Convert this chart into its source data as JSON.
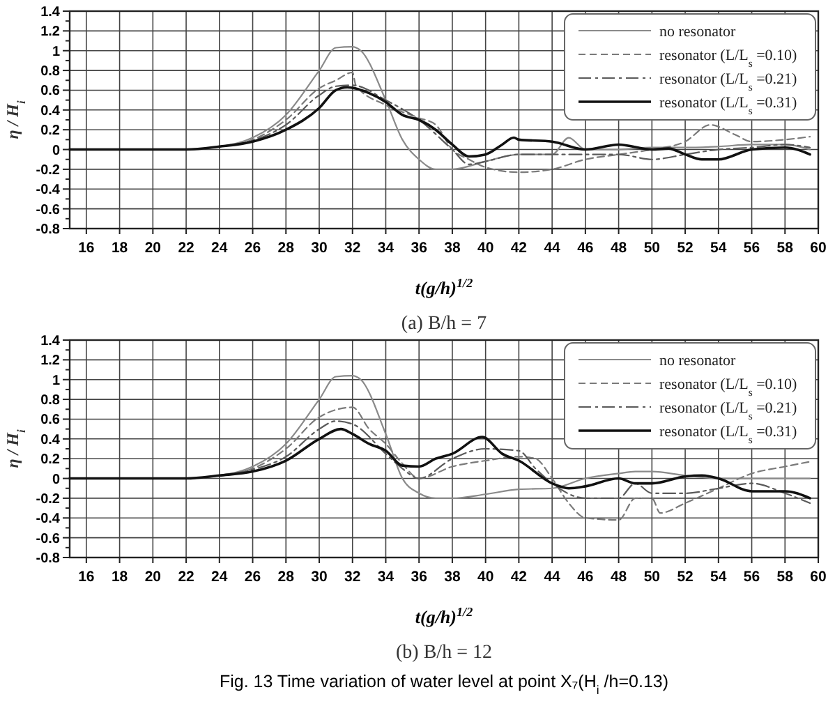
{
  "chart_data": [
    {
      "type": "line",
      "subtitle": "(a)  B/h = 7",
      "xlabel": "t(g/h)$^{1/2}$",
      "ylabel": "η / H$_{i}$",
      "xlim": [
        15,
        60
      ],
      "ylim": [
        -0.8,
        1.4
      ],
      "xticks": [
        16,
        18,
        20,
        22,
        24,
        26,
        28,
        30,
        32,
        34,
        36,
        38,
        40,
        42,
        44,
        46,
        48,
        50,
        52,
        54,
        56,
        58,
        60
      ],
      "yticks": [
        -0.8,
        -0.6,
        -0.4,
        -0.2,
        0,
        0.2,
        0.4,
        0.6,
        0.8,
        1,
        1.2,
        1.4
      ],
      "grid": true,
      "legend": "top right",
      "series": [
        {
          "name": "no resonator",
          "color": "#8a8a8a",
          "line_style": "solid",
          "x": [
            15,
            22,
            24,
            26,
            28,
            30,
            31,
            32,
            32.5,
            34,
            35,
            36,
            37,
            38,
            40,
            42,
            44,
            45,
            46,
            48,
            50,
            52,
            54,
            56,
            58,
            59.5
          ],
          "values": [
            0,
            0,
            0.03,
            0.12,
            0.35,
            0.8,
            1.03,
            1.04,
            1,
            0.5,
            0.1,
            -0.1,
            -0.2,
            -0.2,
            -0.12,
            -0.05,
            -0.05,
            0.12,
            0,
            0,
            0.02,
            0.02,
            0.03,
            0.05,
            0.05,
            0
          ]
        },
        {
          "name": "resonator (L/L$_{s}$=0.10)",
          "color": "#7a7a7a",
          "line_style": "dashed",
          "x": [
            15,
            22,
            24,
            26,
            28,
            30,
            31,
            32,
            32.2,
            34,
            36,
            37,
            38,
            39,
            40,
            42,
            44,
            46,
            48,
            50,
            52,
            53.5,
            55,
            56,
            58,
            59.5
          ],
          "values": [
            0,
            0,
            0.03,
            0.1,
            0.3,
            0.62,
            0.7,
            0.78,
            0.65,
            0.45,
            0.32,
            0.25,
            0,
            -0.1,
            -0.18,
            -0.23,
            -0.2,
            -0.1,
            -0.05,
            0,
            0.08,
            0.25,
            0.15,
            0.08,
            0.1,
            0.13
          ]
        },
        {
          "name": "resonator (L/L$_{s}$=0.21)",
          "color": "#5a5a5a",
          "line_style": "dashdot",
          "x": [
            15,
            22,
            24,
            26,
            28,
            30,
            31,
            32,
            34,
            36,
            38,
            39,
            40,
            42,
            44,
            46,
            48,
            50,
            52,
            54,
            56,
            58,
            59.5
          ],
          "values": [
            0,
            0,
            0.03,
            0.09,
            0.25,
            0.55,
            0.64,
            0.65,
            0.5,
            0.3,
            0,
            -0.15,
            -0.12,
            -0.05,
            -0.05,
            -0.05,
            -0.05,
            -0.1,
            -0.05,
            0,
            0.02,
            0.05,
            0.02
          ]
        },
        {
          "name": "resonator (L/L$_{s}$=0.31)",
          "color": "#111111",
          "line_style": "solid",
          "x": [
            15,
            22,
            24,
            26,
            28,
            30,
            31,
            31.7,
            33,
            34,
            35,
            36,
            37,
            38,
            39,
            40,
            41,
            41.7,
            42,
            44,
            46,
            48,
            50,
            51,
            52,
            53,
            54,
            56,
            58,
            59.5
          ],
          "values": [
            0,
            0,
            0.03,
            0.08,
            0.2,
            0.42,
            0.6,
            0.63,
            0.57,
            0.48,
            0.35,
            0.3,
            0.2,
            0.05,
            -0.07,
            -0.05,
            0.05,
            0.12,
            0.1,
            0.08,
            0,
            0.05,
            0,
            0.01,
            -0.05,
            -0.1,
            -0.1,
            0,
            0.02,
            -0.05
          ]
        }
      ]
    },
    {
      "type": "line",
      "subtitle": "(b)  B/h = 12",
      "xlabel": "t(g/h)$^{1/2}$",
      "ylabel": "η / H$_{i}$",
      "xlim": [
        15,
        60
      ],
      "ylim": [
        -0.8,
        1.4
      ],
      "xticks": [
        16,
        18,
        20,
        22,
        24,
        26,
        28,
        30,
        32,
        34,
        36,
        38,
        40,
        42,
        44,
        46,
        48,
        50,
        52,
        54,
        56,
        58,
        60
      ],
      "yticks": [
        -0.8,
        -0.6,
        -0.4,
        -0.2,
        0,
        0.2,
        0.4,
        0.6,
        0.8,
        1,
        1.2,
        1.4
      ],
      "grid": true,
      "legend": "top right",
      "annotations": [
        "Fig. 13 Time variation of water level at point X₇(H$_{i}$/h=0.13)"
      ],
      "series": [
        {
          "name": "no resonator",
          "color": "#8a8a8a",
          "line_style": "solid",
          "x": [
            15,
            22,
            24,
            26,
            28,
            30,
            31,
            32,
            32.5,
            34,
            35,
            36,
            37,
            38,
            40,
            42,
            44,
            46,
            48,
            49,
            50,
            52,
            54,
            56,
            58,
            59.5
          ],
          "values": [
            0,
            0,
            0.03,
            0.12,
            0.35,
            0.8,
            1.03,
            1.04,
            1,
            0.45,
            0,
            -0.15,
            -0.2,
            -0.2,
            -0.16,
            -0.11,
            -0.1,
            0,
            0.05,
            0.07,
            0.07,
            0.03,
            0,
            0,
            0,
            0
          ]
        },
        {
          "name": "resonator (L/L$_{s}$=0.10)",
          "color": "#7a7a7a",
          "line_style": "dashed",
          "x": [
            15,
            22,
            24,
            26,
            28,
            30,
            32,
            33,
            34,
            35,
            36,
            38,
            40,
            42,
            43,
            44,
            45,
            46,
            48,
            49,
            50,
            50.5,
            52,
            54,
            56,
            58,
            59.5
          ],
          "values": [
            0,
            0,
            0.03,
            0.1,
            0.3,
            0.62,
            0.72,
            0.5,
            0.35,
            0.15,
            0,
            0.12,
            0.18,
            0.22,
            0.2,
            0,
            -0.25,
            -0.4,
            -0.42,
            -0.2,
            -0.2,
            -0.35,
            -0.25,
            -0.1,
            0.05,
            0.12,
            0.17
          ]
        },
        {
          "name": "resonator (L/L$_{s}$=0.21)",
          "color": "#5a5a5a",
          "line_style": "dashdot",
          "x": [
            15,
            22,
            24,
            26,
            28,
            30,
            31,
            32,
            34,
            35,
            36,
            38,
            40,
            42,
            43,
            44,
            46,
            48,
            49,
            50,
            52,
            54,
            56,
            58,
            59.5
          ],
          "values": [
            0,
            0,
            0.03,
            0.09,
            0.22,
            0.5,
            0.58,
            0.55,
            0.25,
            0.1,
            0,
            0.2,
            0.3,
            0.28,
            0.1,
            -0.05,
            -0.2,
            -0.2,
            -0.05,
            -0.15,
            -0.15,
            -0.1,
            -0.05,
            -0.15,
            -0.25
          ]
        },
        {
          "name": "resonator (L/L$_{s}$=0.31)",
          "color": "#111111",
          "line_style": "solid",
          "x": [
            15,
            22,
            24,
            26,
            28,
            30,
            31.3,
            32,
            33,
            34,
            35,
            36,
            37,
            38,
            39.8,
            41,
            42,
            44,
            45,
            46,
            48,
            49,
            50,
            52,
            53,
            54,
            56,
            58,
            59.5
          ],
          "values": [
            0,
            0,
            0.03,
            0.07,
            0.18,
            0.4,
            0.5,
            0.45,
            0.35,
            0.28,
            0.13,
            0.12,
            0.2,
            0.25,
            0.42,
            0.25,
            0.18,
            -0.05,
            -0.1,
            -0.08,
            0,
            -0.05,
            -0.05,
            0.02,
            0.03,
            0,
            -0.13,
            -0.13,
            -0.2
          ]
        }
      ]
    }
  ]
}
